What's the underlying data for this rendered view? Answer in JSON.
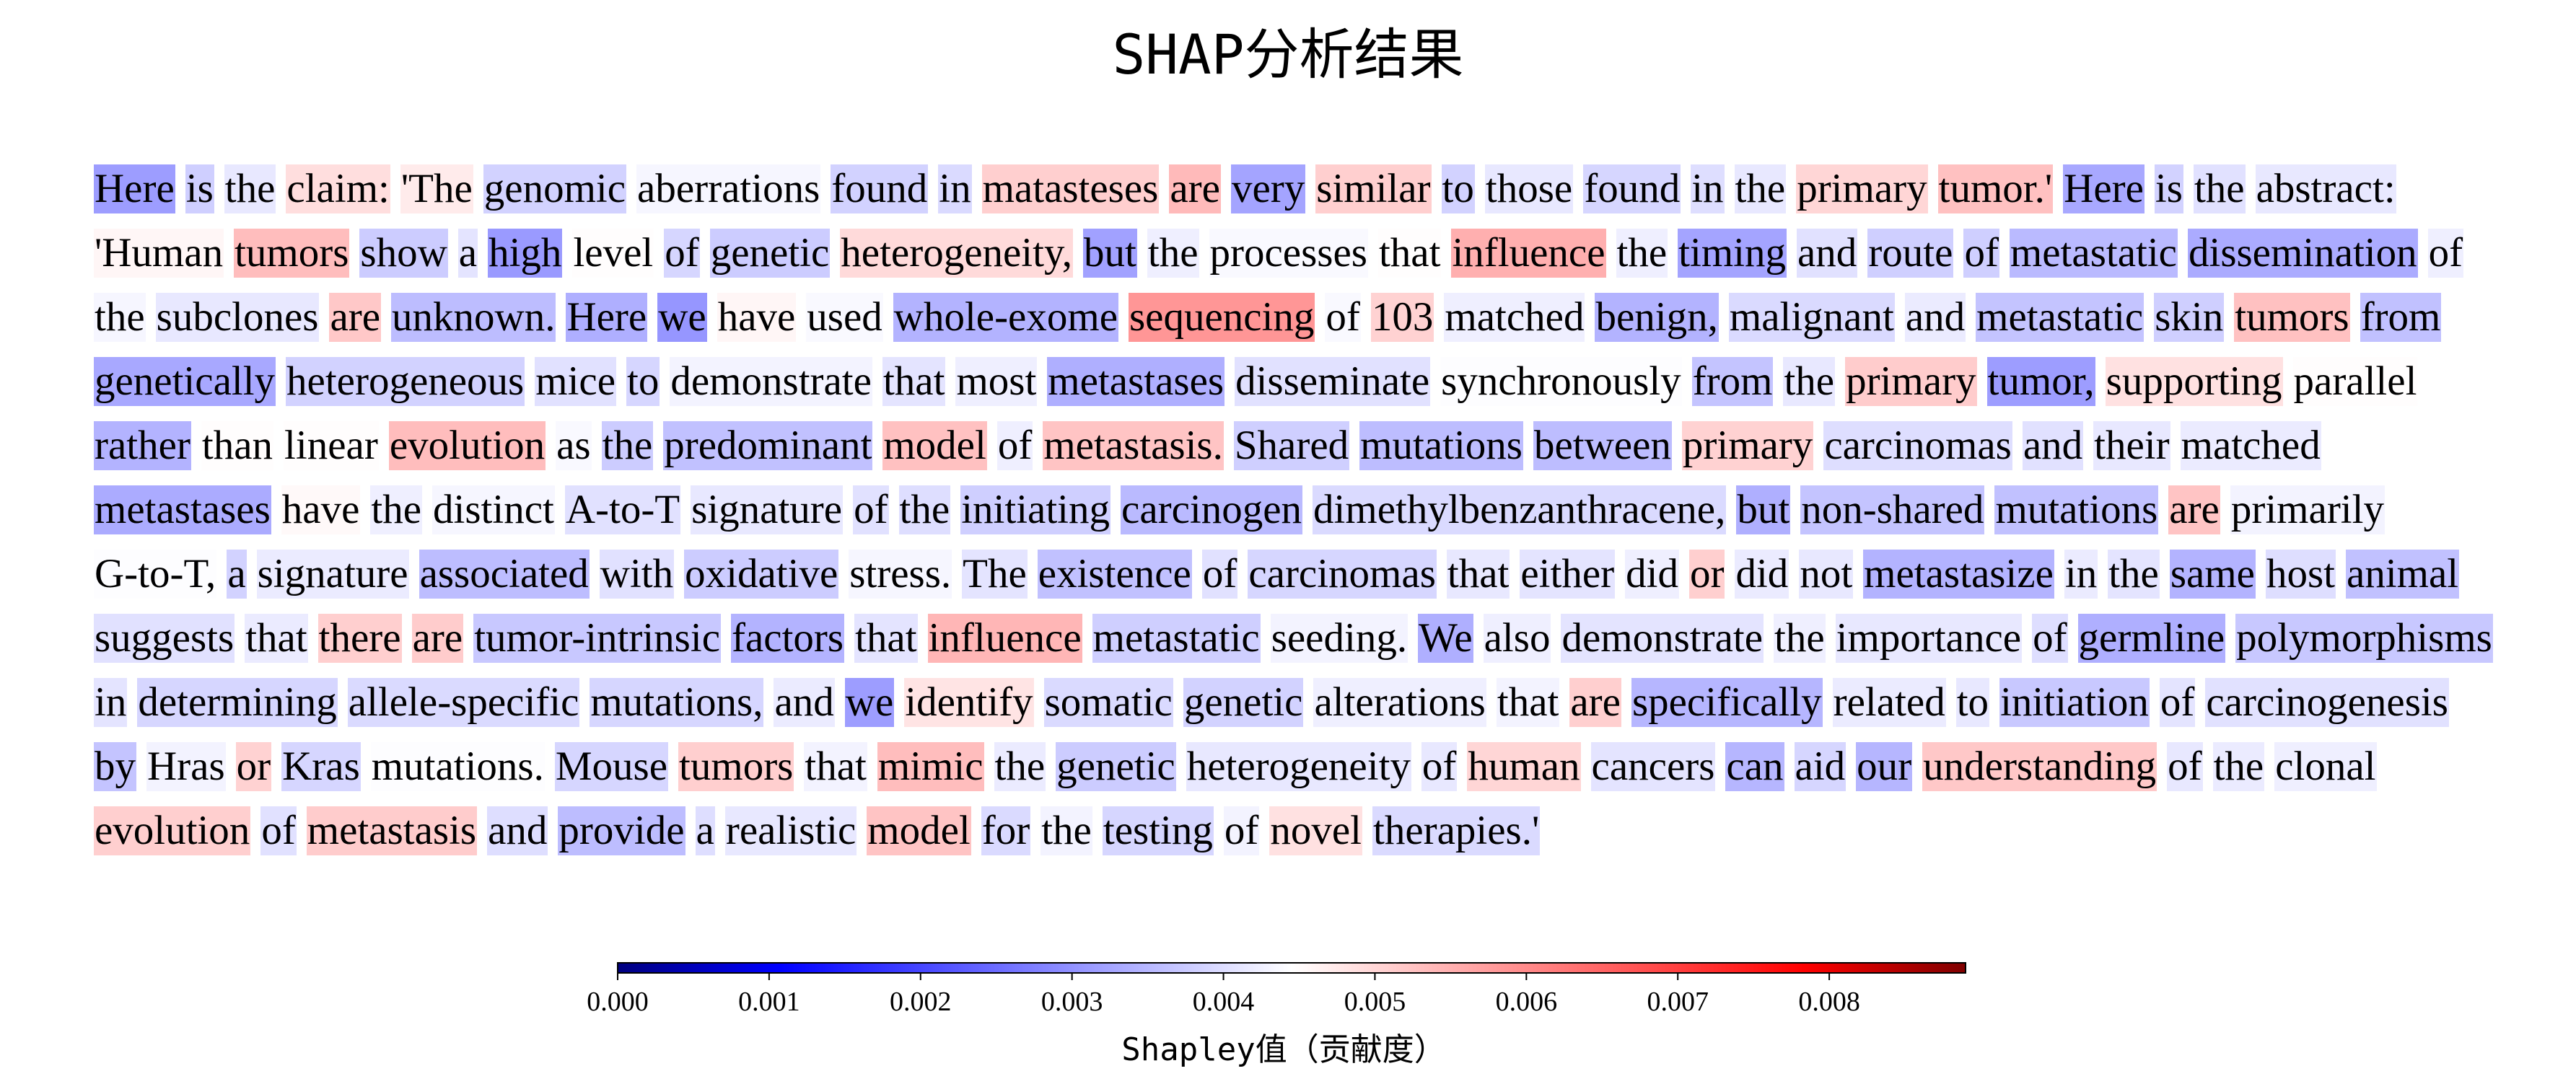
{
  "title": "SHAP分析结果",
  "chart_data": {
    "type": "heatmap",
    "title": "SHAP分析结果",
    "tokens": [
      {
        "w": "Here",
        "v": 0.0017
      },
      {
        "w": "is",
        "v": 0.0031
      },
      {
        "w": "the",
        "v": 0.0038
      },
      {
        "w": "claim:",
        "v": 0.0054
      },
      {
        "w": "'The",
        "v": 0.005
      },
      {
        "w": "genomic",
        "v": 0.0032
      },
      {
        "w": "aberrations",
        "v": 0.0042
      },
      {
        "w": "found",
        "v": 0.0032
      },
      {
        "w": "in",
        "v": 0.0034
      },
      {
        "w": "matasteses",
        "v": 0.0058
      },
      {
        "w": "are",
        "v": 0.0064
      },
      {
        "w": "very",
        "v": 0.0019
      },
      {
        "w": "similar",
        "v": 0.0058
      },
      {
        "w": "to",
        "v": 0.0032
      },
      {
        "w": "those",
        "v": 0.0038
      },
      {
        "w": "found",
        "v": 0.0033
      },
      {
        "w": "in",
        "v": 0.0035
      },
      {
        "w": "the",
        "v": 0.0038
      },
      {
        "w": "primary",
        "v": 0.0056
      },
      {
        "w": "tumor.'",
        "v": 0.0062
      },
      {
        "w": "Here",
        "v": 0.002
      },
      {
        "w": "is",
        "v": 0.0032
      },
      {
        "w": "the",
        "v": 0.0036
      },
      {
        "w": "abstract:",
        "v": 0.0038
      },
      {
        "w": "'Human",
        "v": 0.0047
      },
      {
        "w": "tumors",
        "v": 0.0063
      },
      {
        "w": "show",
        "v": 0.003
      },
      {
        "w": "a",
        "v": 0.0037
      },
      {
        "w": "high",
        "v": 0.0016
      },
      {
        "w": "level",
        "v": 0.0045
      },
      {
        "w": "of",
        "v": 0.0033
      },
      {
        "w": "genetic",
        "v": 0.003
      },
      {
        "w": "heterogeneity,",
        "v": 0.0055
      },
      {
        "w": "but",
        "v": 0.0018
      },
      {
        "w": "the",
        "v": 0.004
      },
      {
        "w": "processes",
        "v": 0.0043
      },
      {
        "w": "that",
        "v": 0.0045
      },
      {
        "w": "influence",
        "v": 0.0067
      },
      {
        "w": "the",
        "v": 0.004
      },
      {
        "w": "timing",
        "v": 0.0019
      },
      {
        "w": "and",
        "v": 0.0036
      },
      {
        "w": "route",
        "v": 0.0031
      },
      {
        "w": "of",
        "v": 0.0031
      },
      {
        "w": "metastatic",
        "v": 0.0025
      },
      {
        "w": "dissemination",
        "v": 0.0021
      },
      {
        "w": "of",
        "v": 0.004
      },
      {
        "w": "the",
        "v": 0.0042
      },
      {
        "w": "subclones",
        "v": 0.0038
      },
      {
        "w": "are",
        "v": 0.006
      },
      {
        "w": "unknown.",
        "v": 0.0026
      },
      {
        "w": "Here",
        "v": 0.0022
      },
      {
        "w": "we",
        "v": 0.0015
      },
      {
        "w": "have",
        "v": 0.0047
      },
      {
        "w": "used",
        "v": 0.0043
      },
      {
        "w": "whole-exome",
        "v": 0.0023
      },
      {
        "w": "sequencing",
        "v": 0.0074
      },
      {
        "w": "of",
        "v": 0.0043
      },
      {
        "w": "103",
        "v": 0.0057
      },
      {
        "w": "matched",
        "v": 0.004
      },
      {
        "w": "benign,",
        "v": 0.0023
      },
      {
        "w": "malignant",
        "v": 0.0034
      },
      {
        "w": "and",
        "v": 0.0039
      },
      {
        "w": "metastatic",
        "v": 0.0028
      },
      {
        "w": "skin",
        "v": 0.0031
      },
      {
        "w": "tumors",
        "v": 0.0062
      },
      {
        "w": "from",
        "v": 0.0027
      },
      {
        "w": "genetically",
        "v": 0.002
      },
      {
        "w": "heterogeneous",
        "v": 0.0032
      },
      {
        "w": "mice",
        "v": 0.0036
      },
      {
        "w": "to",
        "v": 0.0033
      },
      {
        "w": "demonstrate",
        "v": 0.0041
      },
      {
        "w": "that",
        "v": 0.0037
      },
      {
        "w": "most",
        "v": 0.004
      },
      {
        "w": "metastases",
        "v": 0.0022
      },
      {
        "w": "disseminate",
        "v": 0.0036
      },
      {
        "w": "synchronously",
        "v": 0.0044
      },
      {
        "w": "from",
        "v": 0.0028
      },
      {
        "w": "the",
        "v": 0.0038
      },
      {
        "w": "primary",
        "v": 0.0059
      },
      {
        "w": "tumor,",
        "v": 0.0017
      },
      {
        "w": "supporting",
        "v": 0.0053
      },
      {
        "w": "parallel",
        "v": 0.0045
      },
      {
        "w": "rather",
        "v": 0.0023
      },
      {
        "w": "than",
        "v": 0.0045
      },
      {
        "w": "linear",
        "v": 0.0045
      },
      {
        "w": "evolution",
        "v": 0.0063
      },
      {
        "w": "as",
        "v": 0.0043
      },
      {
        "w": "the",
        "v": 0.003
      },
      {
        "w": "predominant",
        "v": 0.0027
      },
      {
        "w": "model",
        "v": 0.0062
      },
      {
        "w": "of",
        "v": 0.004
      },
      {
        "w": "metastasis.",
        "v": 0.0061
      },
      {
        "w": "Shared",
        "v": 0.0031
      },
      {
        "w": "mutations",
        "v": 0.0026
      },
      {
        "w": "between",
        "v": 0.0026
      },
      {
        "w": "primary",
        "v": 0.0057
      },
      {
        "w": "carcinomas",
        "v": 0.0035
      },
      {
        "w": "and",
        "v": 0.0036
      },
      {
        "w": "their",
        "v": 0.0038
      },
      {
        "w": "matched",
        "v": 0.0039
      },
      {
        "w": "metastases",
        "v": 0.0021
      },
      {
        "w": "have",
        "v": 0.0046
      },
      {
        "w": "the",
        "v": 0.004
      },
      {
        "w": "distinct",
        "v": 0.0042
      },
      {
        "w": "A-to-T",
        "v": 0.0036
      },
      {
        "w": "signature",
        "v": 0.0038
      },
      {
        "w": "of",
        "v": 0.0036
      },
      {
        "w": "the",
        "v": 0.0035
      },
      {
        "w": "initiating",
        "v": 0.0031
      },
      {
        "w": "carcinogen",
        "v": 0.0025
      },
      {
        "w": "dimethylbenzanthracene,",
        "v": 0.0034
      },
      {
        "w": "but",
        "v": 0.0022
      },
      {
        "w": "non-shared",
        "v": 0.0028
      },
      {
        "w": "mutations",
        "v": 0.0027
      },
      {
        "w": "are",
        "v": 0.0061
      },
      {
        "w": "primarily",
        "v": 0.0041
      },
      {
        "w": "G-to-T,",
        "v": 0.0044
      },
      {
        "w": "a",
        "v": 0.0032
      },
      {
        "w": "signature",
        "v": 0.0039
      },
      {
        "w": "associated",
        "v": 0.0026
      },
      {
        "w": "with",
        "v": 0.0036
      },
      {
        "w": "oxidative",
        "v": 0.003
      },
      {
        "w": "stress.",
        "v": 0.0042
      },
      {
        "w": "The",
        "v": 0.0037
      },
      {
        "w": "existence",
        "v": 0.0027
      },
      {
        "w": "of",
        "v": 0.0036
      },
      {
        "w": "carcinomas",
        "v": 0.0033
      },
      {
        "w": "that",
        "v": 0.0038
      },
      {
        "w": "either",
        "v": 0.0037
      },
      {
        "w": "did",
        "v": 0.004
      },
      {
        "w": "or",
        "v": 0.0058
      },
      {
        "w": "did",
        "v": 0.0039
      },
      {
        "w": "not",
        "v": 0.0038
      },
      {
        "w": "metastasize",
        "v": 0.0023
      },
      {
        "w": "in",
        "v": 0.0039
      },
      {
        "w": "the",
        "v": 0.0037
      },
      {
        "w": "same",
        "v": 0.0023
      },
      {
        "w": "host",
        "v": 0.0035
      },
      {
        "w": "animal",
        "v": 0.0027
      },
      {
        "w": "suggests",
        "v": 0.0036
      },
      {
        "w": "that",
        "v": 0.0039
      },
      {
        "w": "there",
        "v": 0.0058
      },
      {
        "w": "are",
        "v": 0.0059
      },
      {
        "w": "tumor-intrinsic",
        "v": 0.0029
      },
      {
        "w": "factors",
        "v": 0.0023
      },
      {
        "w": "that",
        "v": 0.0037
      },
      {
        "w": "influence",
        "v": 0.0065
      },
      {
        "w": "metastatic",
        "v": 0.0031
      },
      {
        "w": "seeding.",
        "v": 0.0041
      },
      {
        "w": "We",
        "v": 0.0022
      },
      {
        "w": "also",
        "v": 0.004
      },
      {
        "w": "demonstrate",
        "v": 0.0037
      },
      {
        "w": "the",
        "v": 0.004
      },
      {
        "w": "importance",
        "v": 0.0038
      },
      {
        "w": "of",
        "v": 0.0035
      },
      {
        "w": "germline",
        "v": 0.0022
      },
      {
        "w": "polymorphisms",
        "v": 0.0029
      },
      {
        "w": "in",
        "v": 0.0037
      },
      {
        "w": "determining",
        "v": 0.0033
      },
      {
        "w": "allele-specific",
        "v": 0.0034
      },
      {
        "w": "mutations,",
        "v": 0.0033
      },
      {
        "w": "and",
        "v": 0.0039
      },
      {
        "w": "we",
        "v": 0.0017
      },
      {
        "w": "identify",
        "v": 0.0052
      },
      {
        "w": "somatic",
        "v": 0.0034
      },
      {
        "w": "genetic",
        "v": 0.0032
      },
      {
        "w": "alterations",
        "v": 0.004
      },
      {
        "w": "that",
        "v": 0.0041
      },
      {
        "w": "are",
        "v": 0.0058
      },
      {
        "w": "specifically",
        "v": 0.0024
      },
      {
        "w": "related",
        "v": 0.0039
      },
      {
        "w": "to",
        "v": 0.0038
      },
      {
        "w": "initiation",
        "v": 0.0029
      },
      {
        "w": "of",
        "v": 0.0037
      },
      {
        "w": "carcinogenesis",
        "v": 0.0036
      },
      {
        "w": "by",
        "v": 0.0028
      },
      {
        "w": "Hras",
        "v": 0.0041
      },
      {
        "w": "or",
        "v": 0.0057
      },
      {
        "w": "Kras",
        "v": 0.0033
      },
      {
        "w": "mutations.",
        "v": 0.0044
      },
      {
        "w": "Mouse",
        "v": 0.0033
      },
      {
        "w": "tumors",
        "v": 0.0058
      },
      {
        "w": "that",
        "v": 0.0041
      },
      {
        "w": "mimic",
        "v": 0.0063
      },
      {
        "w": "the",
        "v": 0.0039
      },
      {
        "w": "genetic",
        "v": 0.003
      },
      {
        "w": "heterogeneity",
        "v": 0.0038
      },
      {
        "w": "of",
        "v": 0.0038
      },
      {
        "w": "human",
        "v": 0.0056
      },
      {
        "w": "cancers",
        "v": 0.0037
      },
      {
        "w": "can",
        "v": 0.0024
      },
      {
        "w": "aid",
        "v": 0.0033
      },
      {
        "w": "our",
        "v": 0.0024
      },
      {
        "w": "understanding",
        "v": 0.006
      },
      {
        "w": "of",
        "v": 0.0038
      },
      {
        "w": "the",
        "v": 0.0039
      },
      {
        "w": "clonal",
        "v": 0.004
      },
      {
        "w": "evolution",
        "v": 0.0058
      },
      {
        "w": "of",
        "v": 0.0036
      },
      {
        "w": "metastasis",
        "v": 0.0059
      },
      {
        "w": "and",
        "v": 0.0035
      },
      {
        "w": "provide",
        "v": 0.0026
      },
      {
        "w": "a",
        "v": 0.0035
      },
      {
        "w": "realistic",
        "v": 0.0038
      },
      {
        "w": "model",
        "v": 0.0061
      },
      {
        "w": "for",
        "v": 0.0034
      },
      {
        "w": "the",
        "v": 0.0041
      },
      {
        "w": "testing",
        "v": 0.0033
      },
      {
        "w": "of",
        "v": 0.0041
      },
      {
        "w": "novel",
        "v": 0.0053
      },
      {
        "w": "therapies.'",
        "v": 0.0034
      }
    ],
    "colorbar": {
      "label": "Shapley值（贡献度）",
      "range": [
        0.0,
        0.0089
      ],
      "ticks": [
        0.0,
        0.001,
        0.002,
        0.003,
        0.004,
        0.005,
        0.006,
        0.007,
        0.008
      ],
      "tick_labels": [
        "0.000",
        "0.001",
        "0.002",
        "0.003",
        "0.004",
        "0.005",
        "0.006",
        "0.007",
        "0.008"
      ],
      "colormap": "bwr",
      "colors": {
        "low": "#0000ff",
        "mid": "#ffffff",
        "high": "#ff0000"
      }
    }
  }
}
